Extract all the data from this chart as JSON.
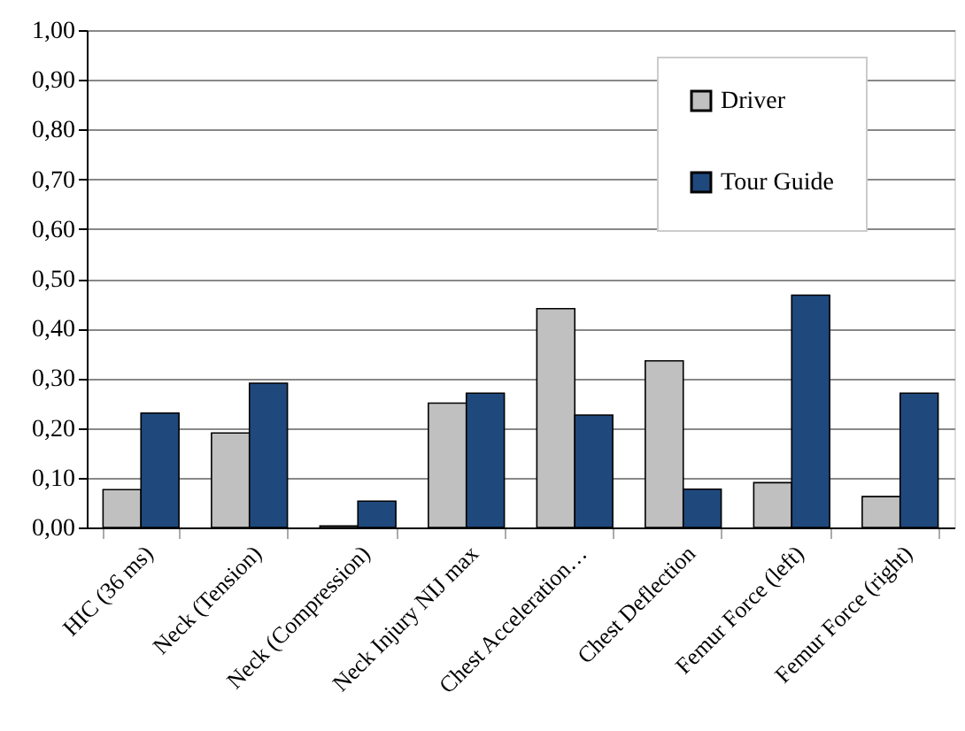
{
  "chart_data": {
    "type": "bar",
    "categories": [
      "HIC (36 ms)",
      "Neck (Tension)",
      "Neck (Compression)",
      "Neck Injury NIJ max",
      "Chest Acceleration…",
      "Chest Deflection",
      "Femur Force (left)",
      "Femur Force (right)"
    ],
    "series": [
      {
        "name": "Driver",
        "color": "#c0c0c0",
        "values": [
          0.076,
          0.19,
          0.003,
          0.25,
          0.44,
          0.335,
          0.09,
          0.062
        ]
      },
      {
        "name": "Tour Guide",
        "color": "#1f497d",
        "values": [
          0.23,
          0.29,
          0.053,
          0.27,
          0.226,
          0.077,
          0.467,
          0.27
        ]
      }
    ],
    "ylim": [
      0,
      1
    ],
    "yticks": [
      {
        "value": 0,
        "label": "0,00"
      },
      {
        "value": 0.1,
        "label": "0,10"
      },
      {
        "value": 0.2,
        "label": "0,20"
      },
      {
        "value": 0.3,
        "label": "0,30"
      },
      {
        "value": 0.4,
        "label": "0,40"
      },
      {
        "value": 0.5,
        "label": "0,50"
      },
      {
        "value": 0.6,
        "label": "0,60"
      },
      {
        "value": 0.7,
        "label": "0,70"
      },
      {
        "value": 0.8,
        "label": "0,80"
      },
      {
        "value": 0.9,
        "label": "0,90"
      },
      {
        "value": 1,
        "label": "1,00"
      }
    ],
    "grid": "y",
    "legend": "top right"
  }
}
